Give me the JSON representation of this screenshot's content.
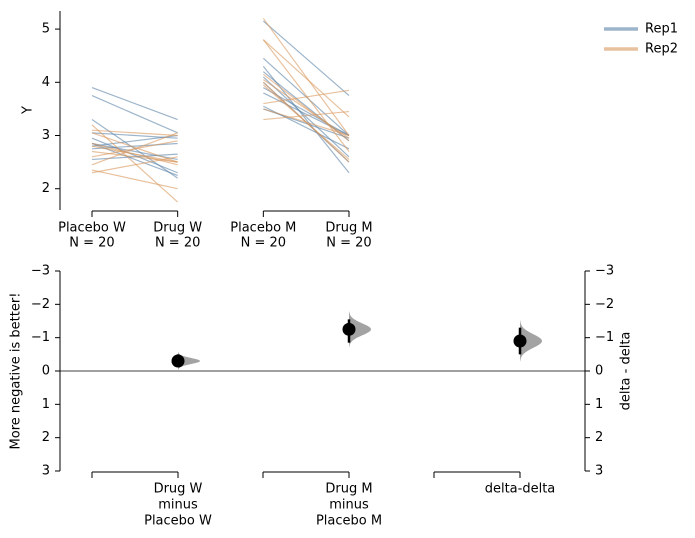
{
  "chart_data": [
    {
      "type": "paired-slope",
      "y_label": "Y",
      "categories": [
        "Placebo W",
        "Drug W",
        "Placebo M",
        "Drug M"
      ],
      "n_labels": [
        "N = 20",
        "N = 20",
        "N = 20",
        "N = 20"
      ],
      "ylim": [
        1.6,
        5.34
      ],
      "yticks": [
        2,
        3,
        4,
        5
      ],
      "legend": "upper right",
      "series": [
        {
          "name": "Rep1",
          "color": "#5b84a8",
          "values": [
            [
              3.9,
              3.75,
              3.3,
              3.05,
              2.85,
              2.8,
              2.55,
              2.85,
              2.95,
              2.75
            ],
            [
              3.3,
              3.05,
              2.2,
              2.95,
              2.25,
              3.0,
              2.65,
              2.55,
              2.3,
              2.85
            ],
            [
              4.45,
              4.3,
              5.15,
              4.0,
              3.9,
              3.5,
              4.2,
              3.8,
              3.55,
              4.1
            ],
            [
              3.0,
              2.3,
              3.75,
              2.5,
              3.0,
              2.95,
              2.9,
              3.0,
              2.75,
              2.6
            ]
          ]
        },
        {
          "name": "Rep2",
          "color": "#d9975e",
          "values": [
            [
              3.1,
              3.05,
              2.85,
              2.7,
              2.45,
              2.35,
              2.3,
              3.2,
              2.6,
              2.8
            ],
            [
              3.0,
              2.5,
              2.45,
              2.5,
              3.05,
              2.0,
              2.6,
              1.75,
              2.9,
              2.5
            ],
            [
              5.2,
              4.8,
              4.8,
              4.0,
              3.6,
              3.3,
              3.95,
              4.05,
              3.5,
              4.15
            ],
            [
              3.0,
              2.7,
              3.35,
              2.5,
              3.85,
              3.45,
              2.55,
              2.95,
              3.0,
              2.9
            ]
          ]
        }
      ]
    },
    {
      "type": "effect-size",
      "y_label": "More negative is better!",
      "y2_label": "delta - delta",
      "categories": [
        [
          "Drug W",
          "minus",
          "Placebo W"
        ],
        [
          "Drug M",
          "minus",
          "Placebo M"
        ],
        [
          "delta-delta"
        ]
      ],
      "values": [
        -0.3,
        -1.25,
        -0.9
      ],
      "ci": [
        [
          -0.5,
          -0.15
        ],
        [
          -1.55,
          -0.85
        ],
        [
          -1.3,
          -0.5
        ]
      ],
      "ylim": [
        -3,
        3
      ],
      "y_inverted": true,
      "yticks": [
        {
          "value": -3,
          "label": "−3"
        },
        {
          "value": -2,
          "label": "−2"
        },
        {
          "value": -1,
          "label": "−1"
        },
        0,
        1,
        2,
        3
      ],
      "y2lim": [
        -3,
        3
      ],
      "y2ticks": [
        {
          "value": -3,
          "label": "−3"
        },
        {
          "value": -2,
          "label": "−2"
        },
        {
          "value": -1,
          "label": "−1"
        },
        0,
        1,
        2,
        3
      ],
      "color": "#000000",
      "distribution_color": "#999999"
    }
  ]
}
